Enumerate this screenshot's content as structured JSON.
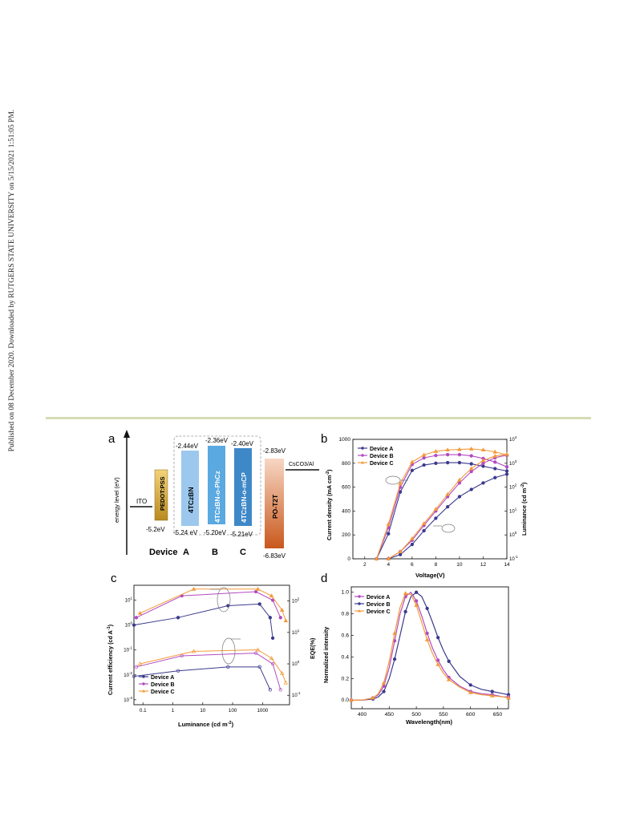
{
  "sidebar_text": "Published on 08 December 2020. Downloaded by RUTGERS STATE UNIVERSITY on 5/15/2021 1:51:05 PM.",
  "colors": {
    "rule": "#d6dbb4",
    "device_a": "#3b3a8c",
    "device_b": "#b14bc0",
    "device_c": "#f39a3a"
  },
  "panel_a": {
    "label": "a",
    "y_axis_label": "energy level (eV)",
    "ito_label": "ITO",
    "ito_level": "-5.2eV",
    "pedot_label": "PEDOT:PSS",
    "layers": [
      {
        "name": "4TCzBN",
        "lumo": "-2.44eV",
        "homo": "-5.24 eV",
        "color": "#9cc8ee"
      },
      {
        "name": "4TCzBN-o-PhCz",
        "lumo": "-2.36eV",
        "homo": "-5.20eV",
        "color": "#5aa9e0"
      },
      {
        "name": "4TCzBN-o-mCP",
        "lumo": "-2.40eV",
        "homo": "-5.21eV",
        "color": "#3f88c8"
      }
    ],
    "etl_label": "PO-T2T",
    "etl_lumo": "-2.83eV",
    "etl_homo": "-6.83eV",
    "cathode_label": "CsCO3/Al",
    "device_label": "Device",
    "device_letters": [
      "A",
      "B",
      "C"
    ]
  },
  "panel_b": {
    "label": "b",
    "legend": [
      "Device A",
      "Device B",
      "Device C"
    ],
    "xlabel": "Voltage(V)",
    "ylabel_left": "Current density (mA cm",
    "ylabel_left_sup": "-2",
    "ylabel_left_end": ")",
    "ylabel_right": "Luminance (cd m",
    "ylabel_right_sup": "-2",
    "ylabel_right_end": ")",
    "x_ticks": [
      "2",
      "4",
      "6",
      "8",
      "10",
      "12",
      "14"
    ],
    "y_ticks_left": [
      "0",
      "200",
      "400",
      "600",
      "800",
      "1000"
    ],
    "y_ticks_right": [
      {
        "b": "10",
        "e": "-1"
      },
      {
        "b": "10",
        "e": "0"
      },
      {
        "b": "10",
        "e": "1"
      },
      {
        "b": "10",
        "e": "2"
      },
      {
        "b": "10",
        "e": "3"
      },
      {
        "b": "10",
        "e": "4"
      }
    ]
  },
  "panel_c": {
    "label": "c",
    "legend": [
      "Device A",
      "Device B",
      "Device C"
    ],
    "xlabel": "Luminance (cd m",
    "xlabel_sup": "-2",
    "xlabel_end": ")",
    "ylabel_left": "Current efficiency (cd A",
    "ylabel_left_sup": "-1",
    "ylabel_left_end": ")",
    "ylabel_right": "EQE(%)",
    "x_ticks": [
      "0.1",
      "1",
      "10",
      "100",
      "1000"
    ],
    "y_ticks_left": [
      {
        "b": "10",
        "e": "1"
      },
      {
        "b": "10",
        "e": "0"
      },
      {
        "b": "10",
        "e": "-1"
      },
      {
        "b": "10",
        "e": "-2"
      },
      {
        "b": "10",
        "e": "-3"
      }
    ],
    "y_ticks_right": [
      {
        "b": "10",
        "e": "2"
      },
      {
        "b": "10",
        "e": "1"
      },
      {
        "b": "10",
        "e": "0"
      },
      {
        "b": "10",
        "e": "-1"
      }
    ]
  },
  "panel_d": {
    "label": "d",
    "legend": [
      "Device A",
      "Device B",
      "Device C"
    ],
    "xlabel": "Wavelength(nm)",
    "ylabel": "Normalized  intensity",
    "x_ticks": [
      "400",
      "450",
      "500",
      "550",
      "600",
      "650"
    ],
    "y_ticks": [
      "0.0",
      "0.2",
      "0.4",
      "0.6",
      "0.8",
      "1.0"
    ]
  },
  "chart_data": [
    {
      "panel": "b",
      "type": "line",
      "xlabel": "Voltage(V)",
      "ylabel": "Current density (mA cm-2)",
      "y2label": "Luminance (cd m-2)",
      "xlim": [
        1,
        14
      ],
      "ylim": [
        0,
        1000
      ],
      "y2lim_log10": [
        -1,
        4
      ],
      "series": [
        {
          "name": "Device A",
          "axis": "left",
          "x": [
            3,
            4,
            5,
            6,
            7,
            8,
            9,
            10,
            11,
            12,
            13,
            14
          ],
          "values": [
            0,
            210,
            560,
            740,
            785,
            800,
            805,
            805,
            795,
            775,
            755,
            735
          ]
        },
        {
          "name": "Device B",
          "axis": "left",
          "x": [
            3,
            4,
            5,
            6,
            7,
            8,
            9,
            10,
            11,
            12,
            13,
            14
          ],
          "values": [
            0,
            260,
            600,
            790,
            845,
            865,
            872,
            872,
            862,
            840,
            810,
            770
          ]
        },
        {
          "name": "Device C",
          "axis": "left",
          "x": [
            3,
            4,
            5,
            6,
            7,
            8,
            9,
            10,
            11,
            12,
            13,
            14
          ],
          "values": [
            0,
            290,
            630,
            810,
            870,
            900,
            912,
            916,
            920,
            912,
            895,
            870
          ]
        },
        {
          "name": "Device A",
          "axis": "right",
          "x": [
            4,
            5,
            6,
            7,
            8,
            9,
            10,
            11,
            12,
            13,
            14
          ],
          "values": [
            0.1,
            0.15,
            0.4,
            1.5,
            5,
            15,
            40,
            80,
            150,
            250,
            350
          ]
        },
        {
          "name": "Device B",
          "axis": "right",
          "x": [
            4,
            5,
            6,
            7,
            8,
            9,
            10,
            11,
            12,
            13,
            14
          ],
          "values": [
            0.1,
            0.2,
            0.6,
            2.5,
            10,
            40,
            150,
            450,
            1000,
            1700,
            2200
          ]
        },
        {
          "name": "Device C",
          "axis": "right",
          "x": [
            4,
            5,
            6,
            7,
            8,
            9,
            10,
            11,
            12,
            13,
            14
          ],
          "values": [
            0.1,
            0.2,
            0.7,
            3,
            12,
            50,
            200,
            600,
            1300,
            2000,
            2400
          ]
        }
      ]
    },
    {
      "panel": "c",
      "type": "line",
      "xlabel": "Luminance (cd m-2)",
      "ylabel": "Current efficiency (cd A-1)",
      "y2label": "EQE(%)",
      "x_log": true,
      "y_log": true,
      "series": [
        {
          "name": "Device A",
          "metric": "CE",
          "x": [
            0.05,
            1.5,
            70,
            800,
            1800,
            2200
          ],
          "values": [
            1,
            2,
            6,
            7,
            2,
            0.3
          ]
        },
        {
          "name": "Device B",
          "metric": "CE",
          "x": [
            0.06,
            2,
            600,
            2200,
            4000
          ],
          "values": [
            2,
            15,
            22,
            10,
            2
          ]
        },
        {
          "name": "Device C",
          "metric": "CE",
          "x": [
            0.08,
            5,
            700,
            2000,
            4500,
            6000
          ],
          "values": [
            3,
            28,
            28,
            15,
            4,
            1.5
          ]
        },
        {
          "name": "Device A",
          "metric": "EQE",
          "x": [
            0.05,
            1.5,
            70,
            800,
            1800
          ],
          "values": [
            0.4,
            0.6,
            0.8,
            0.8,
            0.15
          ]
        },
        {
          "name": "Device B",
          "metric": "EQE",
          "x": [
            0.06,
            2,
            600,
            2200,
            4000
          ],
          "values": [
            0.8,
            1.8,
            2.2,
            1,
            0.15
          ]
        },
        {
          "name": "Device C",
          "metric": "EQE",
          "x": [
            0.08,
            5,
            700,
            2000,
            4500,
            6000
          ],
          "values": [
            1,
            2.5,
            2.8,
            1.5,
            0.5,
            0.25
          ]
        }
      ]
    },
    {
      "panel": "d",
      "type": "line",
      "xlabel": "Wavelength(nm)",
      "ylabel": "Normalized  intensity",
      "xlim": [
        380,
        670
      ],
      "ylim": [
        0,
        1.05
      ],
      "series": [
        {
          "name": "Device A",
          "x": [
            380,
            400,
            420,
            430,
            440,
            450,
            460,
            470,
            480,
            490,
            500,
            510,
            520,
            530,
            540,
            550,
            560,
            580,
            600,
            620,
            640,
            660,
            670
          ],
          "values": [
            0,
            0,
            0.01,
            0.03,
            0.08,
            0.2,
            0.38,
            0.6,
            0.82,
            0.96,
            1.0,
            0.96,
            0.85,
            0.72,
            0.58,
            0.46,
            0.36,
            0.22,
            0.14,
            0.1,
            0.08,
            0.06,
            0.05
          ]
        },
        {
          "name": "Device B",
          "x": [
            380,
            400,
            420,
            430,
            440,
            450,
            460,
            470,
            480,
            490,
            500,
            510,
            520,
            530,
            540,
            550,
            560,
            580,
            600,
            620,
            640,
            660,
            670
          ],
          "values": [
            0,
            0,
            0.02,
            0.05,
            0.13,
            0.3,
            0.55,
            0.8,
            0.96,
            1.0,
            0.92,
            0.78,
            0.62,
            0.48,
            0.37,
            0.28,
            0.21,
            0.13,
            0.08,
            0.06,
            0.05,
            0.03,
            0.03
          ]
        },
        {
          "name": "Device C",
          "x": [
            380,
            400,
            420,
            430,
            440,
            450,
            460,
            470,
            480,
            490,
            500,
            510,
            520,
            530,
            540,
            550,
            560,
            580,
            600,
            620,
            640,
            660,
            670
          ],
          "values": [
            0,
            0,
            0.02,
            0.06,
            0.16,
            0.36,
            0.62,
            0.86,
            0.99,
            0.98,
            0.88,
            0.72,
            0.56,
            0.43,
            0.33,
            0.25,
            0.19,
            0.12,
            0.07,
            0.05,
            0.04,
            0.03,
            0.02
          ]
        }
      ]
    }
  ]
}
